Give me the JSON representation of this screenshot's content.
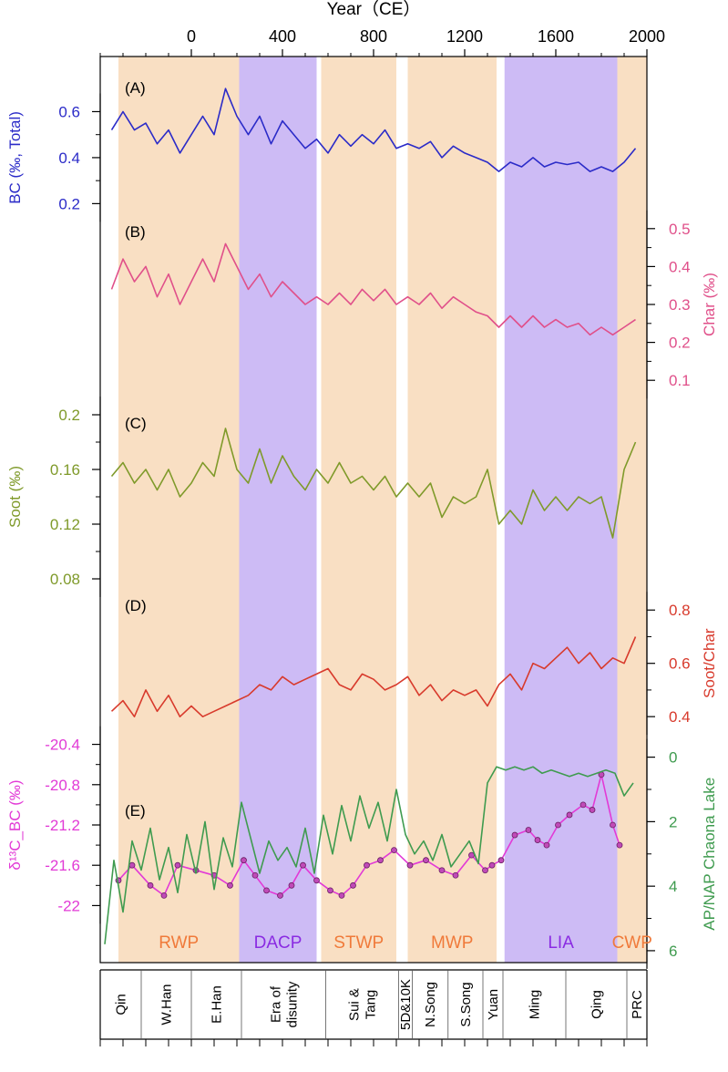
{
  "chart_data": {
    "type": "line",
    "title": "",
    "x_axis": {
      "label": "Year（CE）",
      "range": [
        -400,
        2000
      ],
      "ticks": [
        0,
        400,
        800,
        1200,
        1600,
        2000
      ]
    },
    "periods": [
      {
        "label": "RWP",
        "start": -320,
        "end": 210,
        "kind": "warm"
      },
      {
        "label": "DACP",
        "start": 210,
        "end": 550,
        "kind": "cold"
      },
      {
        "label": "STWP",
        "start": 570,
        "end": 900,
        "kind": "warm"
      },
      {
        "label": "MWP",
        "start": 950,
        "end": 1340,
        "kind": "warm"
      },
      {
        "label": "LIA",
        "start": 1375,
        "end": 1870,
        "kind": "cold"
      },
      {
        "label": "CWP",
        "start": 1870,
        "end": 2000,
        "kind": "warm"
      }
    ],
    "dynasties": [
      {
        "label": "Qin",
        "start": -400,
        "end": -220,
        "lines": [
          "Qin"
        ]
      },
      {
        "label": "W.Han",
        "start": -220,
        "end": 0,
        "lines": [
          "W.Han"
        ]
      },
      {
        "label": "E.Han",
        "start": 0,
        "end": 220,
        "lines": [
          "E.Han"
        ]
      },
      {
        "label": "Era of disunity",
        "start": 220,
        "end": 590,
        "lines": [
          "Era of",
          "disunity"
        ]
      },
      {
        "label": "Sui & Tang",
        "start": 590,
        "end": 910,
        "lines": [
          "Sui &",
          "Tang"
        ]
      },
      {
        "label": "5D&10K",
        "start": 910,
        "end": 970,
        "lines": [
          "5D&10K"
        ]
      },
      {
        "label": "N.Song",
        "start": 970,
        "end": 1127,
        "lines": [
          "N.Song"
        ]
      },
      {
        "label": "S.Song",
        "start": 1127,
        "end": 1280,
        "lines": [
          "S.Song"
        ]
      },
      {
        "label": "Yuan",
        "start": 1280,
        "end": 1368,
        "lines": [
          "Yuan"
        ]
      },
      {
        "label": "Ming",
        "start": 1368,
        "end": 1644,
        "lines": [
          "Ming"
        ]
      },
      {
        "label": "Qing",
        "start": 1644,
        "end": 1912,
        "lines": [
          "Qing"
        ]
      },
      {
        "label": "PRC",
        "start": 1912,
        "end": 2000,
        "lines": [
          "PRC"
        ]
      }
    ],
    "series": [
      {
        "panel_label": "(A)",
        "name": "",
        "ylabel": "BC (‰, Total)",
        "axis_side": "left",
        "color": "#2b2bc8",
        "ylim": [
          0.15,
          0.8
        ],
        "ticks": [
          0.2,
          0.4,
          0.6
        ],
        "tick_labels": [
          "0.2",
          "0.4",
          "0.6"
        ],
        "x": [
          -350,
          -300,
          -250,
          -200,
          -150,
          -100,
          -50,
          0,
          50,
          100,
          150,
          200,
          250,
          300,
          350,
          400,
          450,
          500,
          550,
          600,
          650,
          700,
          750,
          800,
          850,
          900,
          950,
          1000,
          1050,
          1100,
          1150,
          1200,
          1250,
          1300,
          1350,
          1400,
          1450,
          1500,
          1550,
          1600,
          1650,
          1700,
          1750,
          1800,
          1850,
          1900,
          1950
        ],
        "values": [
          0.52,
          0.6,
          0.52,
          0.55,
          0.46,
          0.52,
          0.42,
          0.5,
          0.58,
          0.5,
          0.7,
          0.58,
          0.5,
          0.58,
          0.46,
          0.56,
          0.5,
          0.44,
          0.48,
          0.42,
          0.5,
          0.45,
          0.5,
          0.46,
          0.52,
          0.44,
          0.46,
          0.44,
          0.47,
          0.4,
          0.45,
          0.42,
          0.4,
          0.38,
          0.34,
          0.38,
          0.36,
          0.4,
          0.36,
          0.38,
          0.37,
          0.38,
          0.34,
          0.36,
          0.34,
          0.38,
          0.44
        ]
      },
      {
        "panel_label": "(B)",
        "name": "",
        "ylabel": "Char (‰)",
        "axis_side": "right",
        "color": "#e0508a",
        "ylim": [
          0.05,
          0.55
        ],
        "ticks": [
          0.1,
          0.2,
          0.3,
          0.4,
          0.5
        ],
        "tick_labels": [
          "0.1",
          "0.2",
          "0.3",
          "0.4",
          "0.5"
        ],
        "x": [
          -350,
          -300,
          -250,
          -200,
          -150,
          -100,
          -50,
          0,
          50,
          100,
          150,
          200,
          250,
          300,
          350,
          400,
          450,
          500,
          550,
          600,
          650,
          700,
          750,
          800,
          850,
          900,
          950,
          1000,
          1050,
          1100,
          1150,
          1200,
          1250,
          1300,
          1350,
          1400,
          1450,
          1500,
          1550,
          1600,
          1650,
          1700,
          1750,
          1800,
          1850,
          1900,
          1950
        ],
        "values": [
          0.34,
          0.42,
          0.36,
          0.4,
          0.32,
          0.38,
          0.3,
          0.36,
          0.42,
          0.36,
          0.46,
          0.4,
          0.34,
          0.38,
          0.32,
          0.36,
          0.33,
          0.3,
          0.32,
          0.3,
          0.33,
          0.3,
          0.34,
          0.31,
          0.34,
          0.3,
          0.32,
          0.3,
          0.33,
          0.29,
          0.32,
          0.3,
          0.28,
          0.27,
          0.24,
          0.27,
          0.24,
          0.27,
          0.24,
          0.26,
          0.24,
          0.25,
          0.22,
          0.24,
          0.22,
          0.24,
          0.26
        ]
      },
      {
        "panel_label": "(C)",
        "name": "",
        "ylabel": "Soot (‰)",
        "axis_side": "left",
        "color": "#7f9a2a",
        "ylim": [
          0.07,
          0.21
        ],
        "ticks": [
          0.08,
          0.12,
          0.16,
          0.2
        ],
        "tick_labels": [
          "0.08",
          "0.12",
          "0.16",
          "0.2"
        ],
        "x": [
          -350,
          -300,
          -250,
          -200,
          -150,
          -100,
          -50,
          0,
          50,
          100,
          150,
          200,
          250,
          300,
          350,
          400,
          450,
          500,
          550,
          600,
          650,
          700,
          750,
          800,
          850,
          900,
          950,
          1000,
          1050,
          1100,
          1150,
          1200,
          1250,
          1300,
          1350,
          1400,
          1450,
          1500,
          1550,
          1600,
          1650,
          1700,
          1750,
          1800,
          1850,
          1900,
          1950
        ],
        "values": [
          0.155,
          0.165,
          0.15,
          0.16,
          0.145,
          0.16,
          0.14,
          0.15,
          0.165,
          0.155,
          0.19,
          0.16,
          0.15,
          0.175,
          0.15,
          0.17,
          0.155,
          0.145,
          0.16,
          0.15,
          0.165,
          0.15,
          0.155,
          0.145,
          0.155,
          0.14,
          0.15,
          0.14,
          0.15,
          0.125,
          0.14,
          0.135,
          0.14,
          0.16,
          0.12,
          0.13,
          0.12,
          0.145,
          0.13,
          0.14,
          0.13,
          0.14,
          0.135,
          0.14,
          0.11,
          0.16,
          0.18
        ]
      },
      {
        "panel_label": "(D)",
        "name": "",
        "ylabel": "Soot/Char",
        "axis_side": "right",
        "color": "#d83a2c",
        "ylim": [
          0.25,
          0.9
        ],
        "ticks": [
          0.4,
          0.6,
          0.8
        ],
        "tick_labels": [
          "0.4",
          "0.6",
          "0.8"
        ],
        "x": [
          -350,
          -300,
          -250,
          -200,
          -150,
          -100,
          -50,
          0,
          50,
          100,
          150,
          200,
          250,
          300,
          350,
          400,
          450,
          500,
          550,
          600,
          650,
          700,
          750,
          800,
          850,
          900,
          950,
          1000,
          1050,
          1100,
          1150,
          1200,
          1250,
          1300,
          1350,
          1400,
          1450,
          1500,
          1550,
          1600,
          1650,
          1700,
          1750,
          1800,
          1850,
          1900,
          1950
        ],
        "values": [
          0.42,
          0.46,
          0.4,
          0.5,
          0.42,
          0.48,
          0.4,
          0.44,
          0.4,
          0.42,
          0.44,
          0.46,
          0.48,
          0.52,
          0.5,
          0.55,
          0.52,
          0.54,
          0.56,
          0.58,
          0.52,
          0.5,
          0.56,
          0.54,
          0.5,
          0.52,
          0.55,
          0.48,
          0.52,
          0.46,
          0.5,
          0.48,
          0.5,
          0.44,
          0.52,
          0.56,
          0.5,
          0.6,
          0.58,
          0.62,
          0.66,
          0.6,
          0.64,
          0.58,
          0.62,
          0.6,
          0.7
        ]
      },
      {
        "panel_label": "(E)",
        "name": "",
        "ylabel": "δ¹³C_BC (‰)",
        "axis_side": "left",
        "color": "#e23ad6",
        "marker": "circle",
        "ylim": [
          -22.15,
          -20.25
        ],
        "ticks": [
          -22,
          -21.6,
          -21.2,
          -20.8,
          -20.4
        ],
        "tick_labels": [
          "-22",
          "-21.6",
          "-21.2",
          "-20.8",
          "-20.4"
        ],
        "x": [
          -320,
          -260,
          -180,
          -120,
          -60,
          20,
          100,
          170,
          230,
          280,
          330,
          390,
          440,
          490,
          550,
          610,
          660,
          710,
          770,
          830,
          890,
          960,
          1030,
          1100,
          1160,
          1230,
          1290,
          1320,
          1360,
          1420,
          1480,
          1520,
          1560,
          1610,
          1660,
          1720,
          1760,
          1800,
          1850,
          1880
        ],
        "values": [
          -21.75,
          -21.6,
          -21.8,
          -21.9,
          -21.6,
          -21.65,
          -21.7,
          -21.8,
          -21.55,
          -21.7,
          -21.85,
          -21.9,
          -21.8,
          -21.6,
          -21.75,
          -21.85,
          -21.9,
          -21.8,
          -21.6,
          -21.55,
          -21.45,
          -21.6,
          -21.55,
          -21.65,
          -21.7,
          -21.5,
          -21.65,
          -21.6,
          -21.55,
          -21.3,
          -21.25,
          -21.35,
          -21.4,
          -21.2,
          -21.1,
          -21.0,
          -21.05,
          -20.7,
          -21.2,
          -21.4
        ]
      },
      {
        "panel_label": "",
        "name": "",
        "ylabel": "AP/NAP Chaona Lake",
        "axis_side": "right",
        "color": "#3f9b4f",
        "ylim": [
          6.2,
          -0.3
        ],
        "ticks": [
          0,
          2,
          4,
          6
        ],
        "tick_labels": [
          "0",
          "2",
          "4",
          "6"
        ],
        "x": [
          -380,
          -340,
          -300,
          -260,
          -220,
          -180,
          -140,
          -100,
          -60,
          -20,
          20,
          60,
          100,
          140,
          180,
          220,
          260,
          300,
          340,
          380,
          420,
          460,
          500,
          540,
          580,
          620,
          660,
          700,
          740,
          780,
          820,
          860,
          900,
          940,
          980,
          1020,
          1060,
          1100,
          1140,
          1180,
          1220,
          1260,
          1300,
          1340,
          1380,
          1420,
          1460,
          1500,
          1540,
          1580,
          1620,
          1660,
          1700,
          1740,
          1780,
          1820,
          1860,
          1900,
          1940
        ],
        "values": [
          5.8,
          3.2,
          4.8,
          2.6,
          3.5,
          2.2,
          3.8,
          2.8,
          4.2,
          2.4,
          3.6,
          2.0,
          4.1,
          2.5,
          3.4,
          1.4,
          2.5,
          3.6,
          2.6,
          3.2,
          2.8,
          3.4,
          2.2,
          3.6,
          1.8,
          3.0,
          1.5,
          2.6,
          1.2,
          2.2,
          1.4,
          2.6,
          1.0,
          2.4,
          3.0,
          2.6,
          3.2,
          2.4,
          3.4,
          3.0,
          2.6,
          3.3,
          0.8,
          0.3,
          0.4,
          0.3,
          0.4,
          0.3,
          0.5,
          0.4,
          0.5,
          0.6,
          0.5,
          0.6,
          0.5,
          0.4,
          0.5,
          1.2,
          0.8
        ]
      }
    ]
  }
}
